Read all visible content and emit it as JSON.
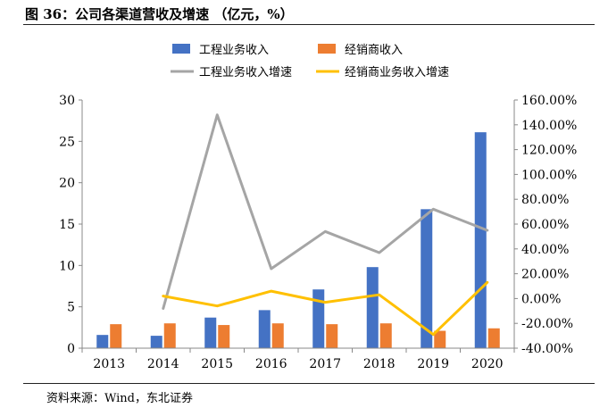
{
  "header": {
    "title": "图 36：公司各渠道营收及增速 （亿元，%）",
    "source": "资料来源：Wind，东北证券"
  },
  "chart_data": {
    "type": "bar",
    "categories": [
      "2013",
      "2014",
      "2015",
      "2016",
      "2017",
      "2018",
      "2019",
      "2020"
    ],
    "series": [
      {
        "name": "工程业务收入",
        "kind": "bar",
        "axis": "left",
        "color": "#4472C4",
        "values": [
          1.6,
          1.5,
          3.7,
          4.6,
          7.1,
          9.8,
          16.8,
          26.1
        ]
      },
      {
        "name": "经销商收入",
        "kind": "bar",
        "axis": "left",
        "color": "#ED7D31",
        "values": [
          2.9,
          3.0,
          2.8,
          3.0,
          2.9,
          3.0,
          2.1,
          2.4
        ]
      },
      {
        "name": "工程业务收入增速",
        "kind": "line",
        "axis": "right",
        "color": "#A5A5A5",
        "values": [
          null,
          -8.0,
          148.0,
          24.0,
          54.0,
          37.0,
          72.0,
          55.0
        ]
      },
      {
        "name": "经销商业务收入增速",
        "kind": "line",
        "axis": "right",
        "color": "#FFC000",
        "values": [
          null,
          2.0,
          -6.0,
          6.0,
          -3.0,
          3.0,
          -29.0,
          13.0
        ]
      }
    ],
    "yleft": {
      "min": 0,
      "max": 30,
      "ticks": [
        "0",
        "5",
        "10",
        "15",
        "20",
        "25",
        "30"
      ]
    },
    "yright": {
      "min": -40,
      "max": 160,
      "ticks": [
        "-40.00%",
        "-20.00%",
        "0.00%",
        "20.00%",
        "40.00%",
        "60.00%",
        "80.00%",
        "100.00%",
        "120.00%",
        "140.00%",
        "160.00%"
      ]
    },
    "legend_position": "top"
  }
}
